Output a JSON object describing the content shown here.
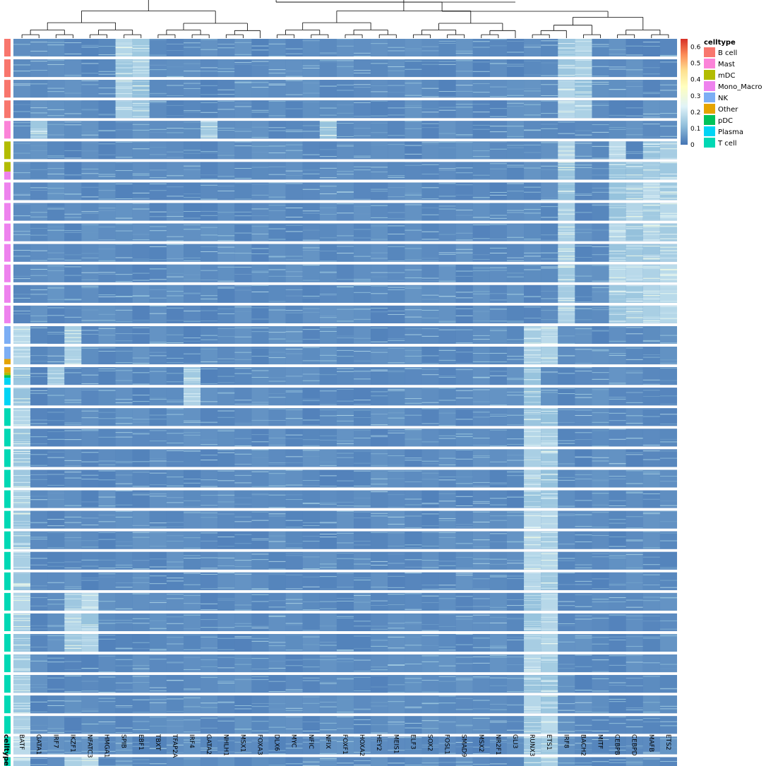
{
  "chart_data": {
    "type": "heatmap",
    "title": "",
    "genes": [
      "BATF",
      "GATA1",
      "IRF7",
      "IKZF1",
      "NFATC3",
      "HMGA1",
      "SPIB",
      "EBF1",
      "TBXT",
      "TFAP2A",
      "IRF4",
      "GATA2",
      "NHLH1",
      "MSX1",
      "FOXA3",
      "DLX6",
      "MYC",
      "NFIC",
      "NFIX",
      "FOXF1",
      "HOXA2",
      "HEY2",
      "MEIS1",
      "ELF3",
      "SOX2",
      "FOSL1",
      "SMAD9",
      "MSX2",
      "NR2F1",
      "GLI3",
      "RUNX3",
      "ETS1",
      "IRF8",
      "BACH2",
      "MITF",
      "CEBPB",
      "CEBPD",
      "MAFB",
      "ETS2"
    ],
    "row_annotation_label": "celltype",
    "legend": {
      "title": "celltype",
      "items": [
        {
          "label": "B cell",
          "color": "#F8766D"
        },
        {
          "label": "Mast",
          "color": "#FB83D8"
        },
        {
          "label": "mDC",
          "color": "#B2BC00"
        },
        {
          "label": "Mono_Macro",
          "color": "#EE82EE"
        },
        {
          "label": "NK",
          "color": "#7CAEF4"
        },
        {
          "label": "Other",
          "color": "#E5A400"
        },
        {
          "label": "pDC",
          "color": "#00C35A"
        },
        {
          "label": "Plasma",
          "color": "#00D4F4"
        },
        {
          "label": "T cell",
          "color": "#00D8B4"
        }
      ]
    },
    "color_scale": {
      "ticks": [
        "0.6",
        "0.5",
        "0.4",
        "0.3",
        "0.2",
        "0.1",
        "0"
      ],
      "min": 0,
      "max": 0.65,
      "colors": [
        "#4575B4",
        "#91BFDB",
        "#E0F3F8",
        "#FFFFBF",
        "#FEE090",
        "#FC8D59",
        "#D73027"
      ]
    },
    "row_blocks": [
      {
        "celltype": "B cell",
        "bands": [
          {
            "type": "B cell",
            "frac": 1
          }
        ],
        "high": [
          "SPIB",
          "EBF1",
          "IRF8",
          "BACH2"
        ]
      },
      {
        "celltype": "B cell",
        "bands": [
          {
            "type": "B cell",
            "frac": 1
          }
        ],
        "high": [
          "SPIB",
          "EBF1",
          "IRF8",
          "BACH2"
        ]
      },
      {
        "celltype": "B cell",
        "bands": [
          {
            "type": "B cell",
            "frac": 1
          }
        ],
        "high": [
          "SPIB",
          "EBF1",
          "IRF8",
          "BACH2"
        ]
      },
      {
        "celltype": "B cell",
        "bands": [
          {
            "type": "B cell",
            "frac": 1
          }
        ],
        "high": [
          "SPIB",
          "EBF1",
          "IRF8",
          "BACH2"
        ]
      },
      {
        "celltype": "Mast",
        "bands": [
          {
            "type": "Mast",
            "frac": 1
          }
        ],
        "high": [
          "GATA1",
          "GATA2",
          "NFIX"
        ]
      },
      {
        "celltype": "mDC",
        "bands": [
          {
            "type": "mDC",
            "frac": 1
          }
        ],
        "high": [
          "IRF8",
          "CEBPB",
          "MAFB",
          "ETS2"
        ]
      },
      {
        "celltype": "mDC",
        "bands": [
          {
            "type": "mDC",
            "frac": 0.55
          },
          {
            "type": "Mono_Macro",
            "frac": 0.45
          }
        ],
        "high": [
          "IRF8",
          "CEBPB",
          "CEBPD",
          "MAFB",
          "ETS2"
        ]
      },
      {
        "celltype": "Mono_Macro",
        "bands": [
          {
            "type": "Mono_Macro",
            "frac": 1
          }
        ],
        "high": [
          "IRF8",
          "CEBPB",
          "CEBPD",
          "MAFB",
          "ETS2"
        ]
      },
      {
        "celltype": "Mono_Macro",
        "bands": [
          {
            "type": "Mono_Macro",
            "frac": 1
          }
        ],
        "high": [
          "IRF8",
          "CEBPB",
          "CEBPD",
          "MAFB",
          "ETS2"
        ]
      },
      {
        "celltype": "Mono_Macro",
        "bands": [
          {
            "type": "Mono_Macro",
            "frac": 1
          }
        ],
        "high": [
          "IRF8",
          "CEBPB",
          "CEBPD",
          "MAFB",
          "ETS2"
        ]
      },
      {
        "celltype": "Mono_Macro",
        "bands": [
          {
            "type": "Mono_Macro",
            "frac": 1
          }
        ],
        "high": [
          "IRF8",
          "CEBPB",
          "CEBPD",
          "MAFB",
          "ETS2"
        ]
      },
      {
        "celltype": "Mono_Macro",
        "bands": [
          {
            "type": "Mono_Macro",
            "frac": 1
          }
        ],
        "high": [
          "IRF8",
          "CEBPB",
          "CEBPD",
          "MAFB",
          "ETS2"
        ]
      },
      {
        "celltype": "Mono_Macro",
        "bands": [
          {
            "type": "Mono_Macro",
            "frac": 1
          }
        ],
        "high": [
          "IRF8",
          "CEBPB",
          "CEBPD",
          "MAFB",
          "ETS2"
        ]
      },
      {
        "celltype": "Mono_Macro",
        "bands": [
          {
            "type": "Mono_Macro",
            "frac": 1
          }
        ],
        "high": [
          "IRF8",
          "CEBPB",
          "CEBPD",
          "MAFB",
          "ETS2"
        ]
      },
      {
        "celltype": "NK",
        "bands": [
          {
            "type": "NK",
            "frac": 1
          }
        ],
        "high": [
          "BATF",
          "IKZF1",
          "RUNX3",
          "ETS1"
        ]
      },
      {
        "celltype": "NK",
        "bands": [
          {
            "type": "NK",
            "frac": 0.7
          },
          {
            "type": "Other",
            "frac": 0.3
          }
        ],
        "high": [
          "BATF",
          "IKZF1",
          "RUNX3",
          "ETS1"
        ]
      },
      {
        "celltype": "Other",
        "bands": [
          {
            "type": "Other",
            "frac": 0.3
          },
          {
            "type": "mDC",
            "frac": 0.15
          },
          {
            "type": "pDC",
            "frac": 0.15
          },
          {
            "type": "Plasma",
            "frac": 0.4
          }
        ],
        "high": [
          "BATF",
          "IRF7",
          "IRF4",
          "RUNX3"
        ]
      },
      {
        "celltype": "Plasma",
        "bands": [
          {
            "type": "Plasma",
            "frac": 1
          }
        ],
        "high": [
          "BATF",
          "IRF4",
          "RUNX3"
        ]
      },
      {
        "celltype": "T cell",
        "bands": [
          {
            "type": "T cell",
            "frac": 1
          }
        ],
        "high": [
          "BATF",
          "RUNX3",
          "ETS1"
        ]
      },
      {
        "celltype": "T cell",
        "bands": [
          {
            "type": "T cell",
            "frac": 1
          }
        ],
        "high": [
          "BATF",
          "RUNX3",
          "ETS1"
        ]
      },
      {
        "celltype": "T cell",
        "bands": [
          {
            "type": "T cell",
            "frac": 1
          }
        ],
        "high": [
          "BATF",
          "RUNX3",
          "ETS1"
        ]
      },
      {
        "celltype": "T cell",
        "bands": [
          {
            "type": "T cell",
            "frac": 1
          }
        ],
        "high": [
          "BATF",
          "RUNX3",
          "ETS1"
        ]
      },
      {
        "celltype": "T cell",
        "bands": [
          {
            "type": "T cell",
            "frac": 1
          }
        ],
        "high": [
          "BATF",
          "RUNX3",
          "ETS1"
        ]
      },
      {
        "celltype": "T cell",
        "bands": [
          {
            "type": "T cell",
            "frac": 1
          }
        ],
        "high": [
          "BATF",
          "RUNX3",
          "ETS1"
        ]
      },
      {
        "celltype": "T cell",
        "bands": [
          {
            "type": "T cell",
            "frac": 1
          }
        ],
        "high": [
          "BATF",
          "RUNX3",
          "ETS1"
        ]
      },
      {
        "celltype": "T cell",
        "bands": [
          {
            "type": "T cell",
            "frac": 1
          }
        ],
        "high": [
          "BATF",
          "RUNX3",
          "ETS1"
        ]
      },
      {
        "celltype": "T cell",
        "bands": [
          {
            "type": "T cell",
            "frac": 1
          }
        ],
        "high": [
          "BATF",
          "RUNX3",
          "ETS1"
        ]
      },
      {
        "celltype": "T cell",
        "bands": [
          {
            "type": "T cell",
            "frac": 1
          }
        ],
        "high": [
          "BATF",
          "RUNX3",
          "ETS1",
          "IKZF1",
          "NFATC3"
        ]
      },
      {
        "celltype": "T cell",
        "bands": [
          {
            "type": "T cell",
            "frac": 1
          }
        ],
        "high": [
          "BATF",
          "RUNX3",
          "ETS1",
          "IKZF1",
          "NFATC3"
        ]
      },
      {
        "celltype": "T cell",
        "bands": [
          {
            "type": "T cell",
            "frac": 1
          }
        ],
        "high": [
          "BATF",
          "RUNX3",
          "ETS1",
          "IKZF1",
          "NFATC3"
        ]
      },
      {
        "celltype": "T cell",
        "bands": [
          {
            "type": "T cell",
            "frac": 1
          }
        ],
        "high": [
          "BATF",
          "RUNX3",
          "ETS1"
        ]
      },
      {
        "celltype": "T cell",
        "bands": [
          {
            "type": "T cell",
            "frac": 1
          }
        ],
        "high": [
          "BATF",
          "RUNX3",
          "ETS1"
        ]
      },
      {
        "celltype": "T cell",
        "bands": [
          {
            "type": "T cell",
            "frac": 1
          }
        ],
        "high": [
          "BATF",
          "RUNX3",
          "ETS1"
        ]
      },
      {
        "celltype": "T cell",
        "bands": [
          {
            "type": "T cell",
            "frac": 1
          }
        ],
        "high": [
          "BATF",
          "RUNX3",
          "ETS1"
        ]
      },
      {
        "celltype": "T cell",
        "bands": [
          {
            "type": "T cell",
            "frac": 1
          }
        ],
        "high": [
          "BATF",
          "RUNX3",
          "ETS1"
        ]
      },
      {
        "celltype": "T cell",
        "bands": [
          {
            "type": "T cell",
            "frac": 1
          }
        ],
        "high": [
          "BATF",
          "RUNX3",
          "ETS1",
          "IKZF1",
          "NFATC3"
        ]
      }
    ]
  }
}
